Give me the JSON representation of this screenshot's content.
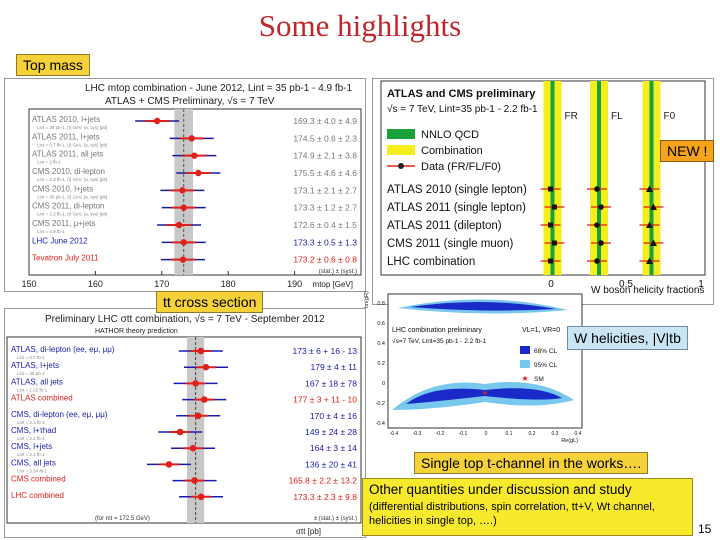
{
  "slide": {
    "title": "Some highlights",
    "page_number": "15"
  },
  "labels": {
    "top_mass": "Top mass",
    "tt_cross_section": "tt cross section",
    "w_helicities": "W helicities, |V|tb",
    "single_top": "Single top t-channel in the works….",
    "new_badge": "NEW !",
    "other_title": "Other quantities under discussion and study",
    "other_detail": "(differential distributions, spin correlation, tt+V, Wt channel, helicities in single top, ….)"
  },
  "colors": {
    "title_red": "#c0272d",
    "box_yellow": "#f5d23a",
    "box_blue": "#c9e4f2",
    "band_gray": "#c8c8c8",
    "red_point": "#e0201b",
    "blue_point": "#1a1ab0",
    "green_band": "#1aa23a",
    "yellow_band": "#f5ee1c"
  },
  "chart_data": [
    {
      "type": "scatter",
      "title": "LHC mtop combination - June 2012, Lint = 35 pb-1 - 4.9 fb-1",
      "subtitle": "ATLAS + CMS Preliminary, √s = 7 TeV",
      "xlabel": "mtop [GeV]",
      "xlim": [
        150,
        200
      ],
      "xticks": [
        150,
        160,
        170,
        180,
        190
      ],
      "band_center": 173.3,
      "entries": [
        {
          "name": "ATLAS 2010, l+jets",
          "sub": "Lint = 35 pb-1, (t) GeV, (a, sys) [pb]",
          "value": 169.3,
          "text": "169.3 ± 4.0 ± 4.9",
          "color": "gray"
        },
        {
          "name": "ATLAS 2011, l+jets",
          "sub": "Lint = 0.7 fb-1, (t) GeV, (a, sys) [pb]",
          "value": 174.5,
          "text": "174.5 ± 0.6 ± 2.3",
          "color": "gray"
        },
        {
          "name": "ATLAS 2011, all jets",
          "sub": "Lint = 2 fb-1",
          "value": 174.9,
          "text": "174.9 ± 2.1 ± 3.8",
          "color": "gray"
        },
        {
          "name": "CMS 2010, di-lepton",
          "sub": "Lint = 2.3 fb-1, (t) GeV, (a, sys) [pb]",
          "value": 175.5,
          "text": "175.5 ± 4.6 ± 4.6",
          "color": "gray"
        },
        {
          "name": "CMS 2010, l+jets",
          "sub": "Lint = 36 pb-1, (t) GeV, (a, sys) [pb]",
          "value": 173.1,
          "text": "173.1 ± 2.1 ± 2.7",
          "color": "gray"
        },
        {
          "name": "CMS 2011, di-lepton",
          "sub": "Lint = 2.3 fb-1, (t) GeV, (a, sys) [pb]",
          "value": 173.3,
          "text": "173.3 ± 1.2 ± 2.7",
          "color": "gray"
        },
        {
          "name": "CMS 2011, μ+jets",
          "sub": "Lint = 4.9 fb-1",
          "value": 172.6,
          "text": "172.6 ± 0.4 ± 1.5",
          "color": "gray"
        },
        {
          "name": "LHC June 2012",
          "sub": "",
          "value": 173.3,
          "text": "173.3 ± 0.5 ± 1.3",
          "color": "blue"
        },
        {
          "name": "Tevatron July 2011",
          "sub": "",
          "value": 173.2,
          "text": "173.2 ± 0.6 ± 0.8",
          "color": "red"
        }
      ],
      "footnote": "(stat.) ± (syst.)"
    },
    {
      "type": "scatter",
      "title": "W boson helicity fractions",
      "subtitle": "ATLAS and CMS preliminary",
      "energy": "√s = 7 TeV, Lint=35 pb-1 - 2.2 fb-1",
      "xlabel": "W boson helicity fractions",
      "xticks": [
        "0",
        "0.5",
        "1"
      ],
      "fraction_labels": [
        "F0",
        "FL",
        "FR"
      ],
      "legend": [
        "NNLO QCD",
        "Combination",
        "Data (FR/FL/F0)"
      ],
      "entries": [
        "ATLAS 2010 (single lepton)",
        "ATLAS 2011 (single lepton)",
        "ATLAS 2011 (dilepton)",
        "CMS 2011 (single muon)",
        "LHC combination"
      ],
      "FR": 0.01,
      "FL": 0.32,
      "F0": 0.67
    },
    {
      "type": "scatter",
      "title": "Preliminary LHC σtt combination, √s = 7 TeV - September 2012",
      "subtitle": "HATHOR theory prediction",
      "xlabel": "σtt [pb]",
      "band_center": 167,
      "entries": [
        {
          "name": "ATLAS, di-lepton (ee, eμ, μμ)",
          "sub": "Lint = 0.7 fb-1",
          "value": 173,
          "text": "173 ± 6 + 16 - 13",
          "color": "blue"
        },
        {
          "name": "ATLAS, l+jets",
          "sub": "Lint = 35 pb-1",
          "value": 179,
          "text": "179 ± 4 ± 11",
          "color": "blue"
        },
        {
          "name": "ATLAS, all jets",
          "sub": "Lint = 1.02 fb-1",
          "value": 167,
          "text": "167 ± 18 ± 78",
          "color": "blue"
        },
        {
          "name": "ATLAS combined",
          "sub": "",
          "value": 177,
          "text": "177 ± 3 + 11 - 10",
          "color": "red"
        },
        {
          "name": "CMS, di-lepton (ee, eμ, μμ)",
          "sub": "Lint = 2.3 fb-1",
          "value": 170,
          "text": "170 ± 4 ± 16",
          "color": "blue"
        },
        {
          "name": "CMS, l+τhad",
          "sub": "Lint = 2.2 fb-1",
          "value": 149,
          "text": "149 ± 24 ± 28",
          "color": "blue"
        },
        {
          "name": "CMS, l+jets",
          "sub": "Lint = 2.3 fb-1",
          "value": 164,
          "text": "164 ± 3 ± 14",
          "color": "blue"
        },
        {
          "name": "CMS, all jets",
          "sub": "Lint = 3.54 fb-1",
          "value": 136,
          "text": "136 ± 20 ± 41",
          "color": "blue"
        },
        {
          "name": "CMS combined",
          "sub": "",
          "value": 165.8,
          "text": "165.8 ± 2.2 ± 13.2",
          "color": "red"
        },
        {
          "name": "LHC combined",
          "sub": "",
          "value": 173.3,
          "text": "173.3 ± 2.3 ± 9.8",
          "color": "red"
        }
      ],
      "footnote": "± (stat.) ± (syst.)",
      "mass_note": "(for mt = 172.5 GeV)"
    },
    {
      "type": "scatter",
      "title": "LHC combination preliminary",
      "energy": "√s=7 TeV, Lint=35 pb-1 - 2.2 fb-1",
      "params": "VL=1, VR=0",
      "xlabel": "Re(gL)",
      "ylabel": "Im(gR)",
      "xticks": [
        "-0.4",
        "-0.3",
        "-0.2",
        "-0.1",
        "0",
        "0.1",
        "0.2",
        "0.3",
        "0.4"
      ],
      "yticks": [
        "0.8",
        "0.6",
        "0.4",
        "0.2",
        "0",
        "-0.2",
        "-0.4"
      ],
      "legend": [
        "68% CL",
        "95% CL",
        "SM"
      ]
    }
  ]
}
